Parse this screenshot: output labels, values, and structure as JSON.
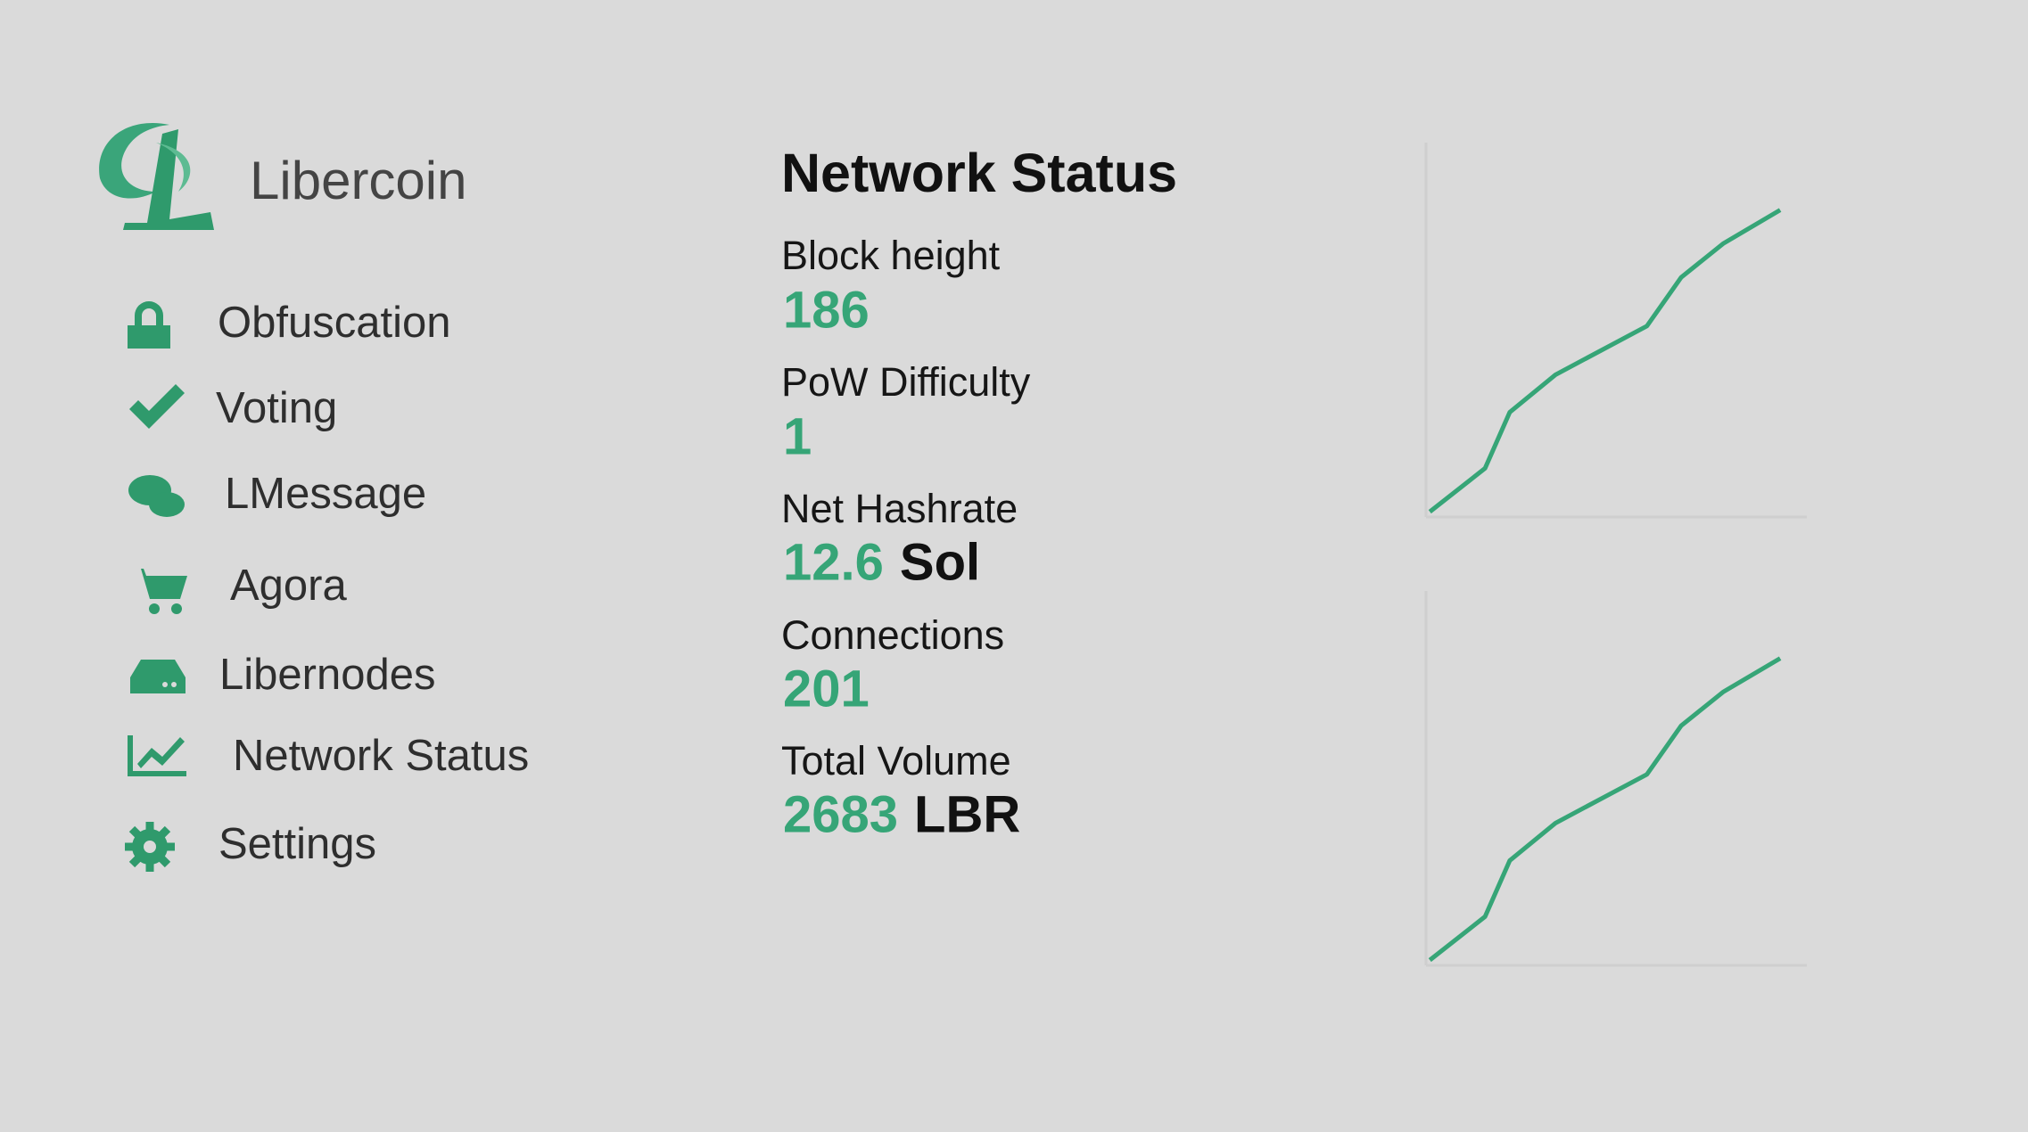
{
  "brand": {
    "name": "Libercoin"
  },
  "nav": [
    {
      "label": "Obfuscation"
    },
    {
      "label": "Voting"
    },
    {
      "label": "LMessage"
    },
    {
      "label": "Agora"
    },
    {
      "label": "Libernodes"
    },
    {
      "label": "Network Status"
    },
    {
      "label": "Settings"
    }
  ],
  "panel": {
    "title": "Network Status",
    "stats": [
      {
        "label": "Block height",
        "value": "186"
      },
      {
        "label": "PoW Difficulty",
        "value": "1"
      },
      {
        "label": "Net Hashrate",
        "value": "12.6",
        "unit": "Sol"
      },
      {
        "label": "Connections",
        "value": "201"
      },
      {
        "label": "Total Volume",
        "value": "2683",
        "unit": "LBR"
      }
    ]
  },
  "sparklines": [
    {
      "type": "line",
      "color": "#36a577",
      "xlim": [
        0,
        100
      ],
      "ylim": [
        0,
        100
      ],
      "x": [
        1,
        15.5,
        22,
        34,
        58,
        67,
        78,
        93
      ],
      "values": [
        1.4,
        13,
        28,
        38,
        51,
        64,
        73,
        82
      ]
    },
    {
      "type": "line",
      "color": "#36a577",
      "xlim": [
        0,
        100
      ],
      "ylim": [
        0,
        100
      ],
      "x": [
        1,
        15.5,
        22,
        34,
        58,
        67,
        78,
        93
      ],
      "values": [
        1.4,
        13,
        28,
        38,
        51,
        64,
        73,
        82
      ]
    }
  ]
}
